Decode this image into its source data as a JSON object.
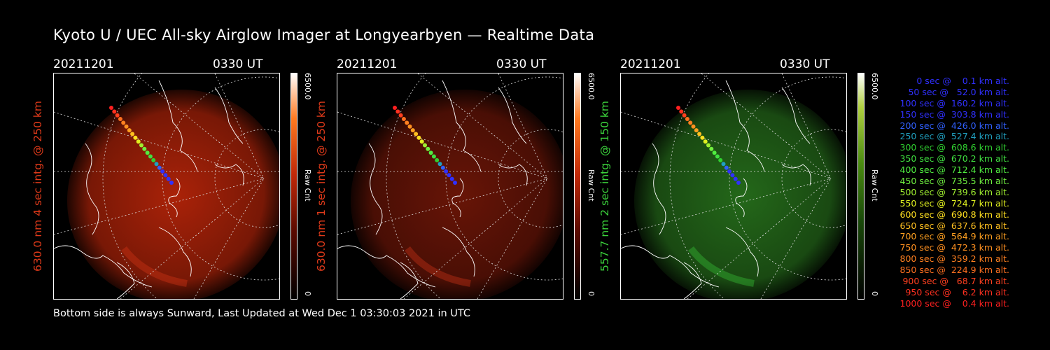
{
  "title": "Kyoto U / UEC All-sky Airglow Imager at Longyearbyen — Realtime Data",
  "footer": "Bottom side is always Sunward, Last Updated at Wed Dec  1 03:30:03 2021 in UTC",
  "panels": [
    {
      "date": "20211201",
      "time": "0330 UT",
      "ylabel": "630.0 nm 4 sec intg. @ 250 km",
      "label_color": "#e03a1a",
      "glow_color": "#c8280a",
      "cbar_max": "6500.0",
      "cbar_unit": "Raw Cnt",
      "cbar_min": "0",
      "cbar_gradient": "red"
    },
    {
      "date": "20211201",
      "time": "0330 UT",
      "ylabel": "630.0 nm 1 sec intg. @ 250 km",
      "label_color": "#e03a1a",
      "glow_color": "#7a1808",
      "cbar_max": "6500.0",
      "cbar_unit": "Raw Cnt",
      "cbar_min": "0",
      "cbar_gradient": "red"
    },
    {
      "date": "20211201",
      "time": "0330 UT",
      "ylabel": "557.7 nm 2 sec intg. @ 150 km",
      "label_color": "#3cd43c",
      "glow_color": "#2a7a1e",
      "cbar_max": "6500.0",
      "cbar_unit": "Raw Cnt",
      "cbar_min": "0",
      "cbar_gradient": "green"
    }
  ],
  "legend": [
    {
      "text": "0 sec @    0.1 km alt.",
      "color": "#3030ff"
    },
    {
      "text": "50 sec @   52.0 km alt.",
      "color": "#3030ff"
    },
    {
      "text": "100 sec @  160.2 km alt.",
      "color": "#3030ff"
    },
    {
      "text": "150 sec @  303.8 km alt.",
      "color": "#3030ff"
    },
    {
      "text": "200 sec @  426.0 km alt.",
      "color": "#3060ff"
    },
    {
      "text": "250 sec @  527.4 km alt.",
      "color": "#20a0c0"
    },
    {
      "text": "300 sec @  608.6 km alt.",
      "color": "#30d030"
    },
    {
      "text": "350 sec @  670.2 km alt.",
      "color": "#40e040"
    },
    {
      "text": "400 sec @  712.4 km alt.",
      "color": "#50ee40"
    },
    {
      "text": "450 sec @  735.5 km alt.",
      "color": "#70f040"
    },
    {
      "text": "500 sec @  739.6 km alt.",
      "color": "#a0f030"
    },
    {
      "text": "550 sec @  724.7 km alt.",
      "color": "#e0f020"
    },
    {
      "text": "600 sec @  690.8 km alt.",
      "color": "#ffe020"
    },
    {
      "text": "650 sec @  637.6 km alt.",
      "color": "#ffc020"
    },
    {
      "text": "700 sec @  564.9 km alt.",
      "color": "#ffa020"
    },
    {
      "text": "750 sec @  472.3 km alt.",
      "color": "#ff9020"
    },
    {
      "text": "800 sec @  359.2 km alt.",
      "color": "#ff8020"
    },
    {
      "text": "850 sec @  224.9 km alt.",
      "color": "#ff7020"
    },
    {
      "text": "900 sec @   68.7 km alt.",
      "color": "#ff4020"
    },
    {
      "text": "950 sec @    6.2 km alt.",
      "color": "#ff3020"
    },
    {
      "text": "1000 sec @    0.4 km alt.",
      "color": "#ff2020"
    }
  ]
}
